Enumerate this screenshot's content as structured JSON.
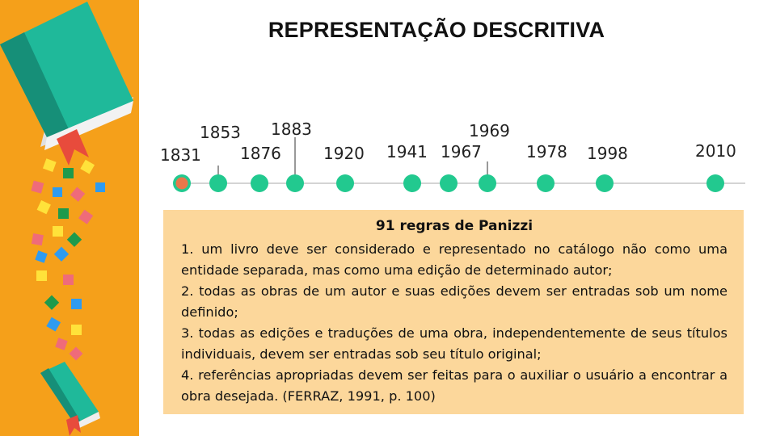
{
  "title": "REPRESENTAÇÃO DESCRITIVA",
  "timeline": {
    "years": [
      "1831",
      "1853",
      "1876",
      "1883",
      "1920",
      "1941",
      "1967",
      "1969",
      "1978",
      "1998",
      "2010"
    ],
    "active_year": "1831"
  },
  "box": {
    "title": "91 regras de Panizzi",
    "rules": [
      "1. um livro deve ser considerado e representado no catálogo não como uma entidade separada, mas como uma edição de determinado autor;",
      "2. todas as obras de um autor e suas edições devem ser entradas sob um nome definido;",
      "3. todas as edições e traduções de uma obra, independentemente de seus títulos individuais, devem ser entradas sob seu título original;",
      "4. referências apropriadas devem ser feitas para o auxiliar o usuário a encontrar a obra desejada. (FERRAZ, 1991, p. 100)"
    ]
  },
  "colors": {
    "sidebar": "#f5a01a",
    "book": "#1fb99a",
    "timeline_dot": "#22c98f",
    "active_dot": "#e8774a",
    "box_bg": "#fcd79b"
  },
  "icons": [
    "book-icon",
    "bookmark-icon",
    "confetti"
  ]
}
